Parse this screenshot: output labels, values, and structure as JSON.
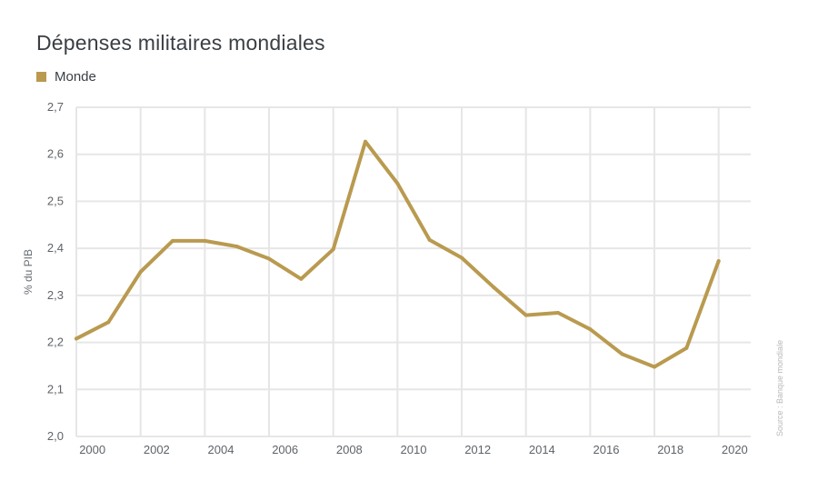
{
  "chart_data": {
    "type": "line",
    "title": "Dépenses militaires mondiales",
    "ylabel": "% du PIB",
    "xlabel": "",
    "source": "Source : Banque mondiale",
    "legend_position": "top-left",
    "grid": true,
    "ylim": [
      2.0,
      2.7
    ],
    "yticks": [
      "2,0",
      "2,1",
      "2,2",
      "2,3",
      "2,4",
      "2,5",
      "2,6",
      "2,7"
    ],
    "xlim": [
      1999.5,
      2020.5
    ],
    "xticks": [
      "2000",
      "2002",
      "2004",
      "2006",
      "2008",
      "2010",
      "2012",
      "2014",
      "2016",
      "2018",
      "2020"
    ],
    "x": [
      1999.5,
      2000.5,
      2001.5,
      2002.5,
      2003.5,
      2004.5,
      2005.5,
      2006.5,
      2007.5,
      2008.5,
      2009.5,
      2010.5,
      2011.5,
      2012.5,
      2013.5,
      2014.5,
      2015.5,
      2016.5,
      2017.5,
      2018.5,
      2019.5
    ],
    "series": [
      {
        "name": "Monde",
        "color": "#b99a4f",
        "values": [
          2.208,
          2.243,
          2.35,
          2.416,
          2.416,
          2.404,
          2.378,
          2.335,
          2.398,
          2.627,
          2.538,
          2.418,
          2.38,
          2.317,
          2.258,
          2.263,
          2.228,
          2.175,
          2.148,
          2.188,
          2.373
        ]
      }
    ]
  }
}
